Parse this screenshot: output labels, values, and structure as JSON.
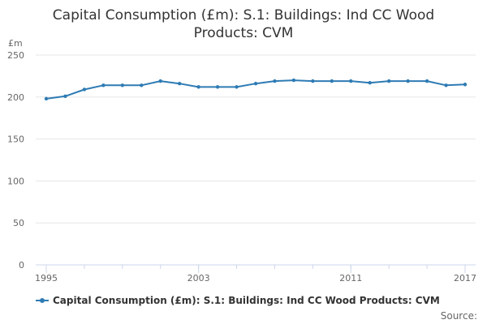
{
  "colors": {
    "series": "#2e7bb4",
    "grid": "#e6e6e6",
    "axis": "#ccd6eb",
    "text": "#666666"
  },
  "source_label": "Source:",
  "chart_data": {
    "type": "line",
    "title": "Capital Consumption (£m): S.1: Buildings: Ind CC Wood Products: CVM",
    "ylabel": "£m",
    "xlabel": "",
    "ylim": [
      0,
      250
    ],
    "yticks": [
      0,
      50,
      100,
      150,
      200,
      250
    ],
    "xticks": [
      1995,
      2003,
      2011,
      2017
    ],
    "grid": true,
    "legend": "bottom-left",
    "series": [
      {
        "name": "Capital Consumption (£m): S.1: Buildings: Ind CC Wood Products: CVM",
        "x": [
          1995,
          1996,
          1997,
          1998,
          1999,
          2000,
          2001,
          2002,
          2003,
          2004,
          2005,
          2006,
          2007,
          2008,
          2009,
          2010,
          2011,
          2012,
          2013,
          2014,
          2015,
          2016,
          2017
        ],
        "values": [
          198,
          201,
          209,
          214,
          214,
          214,
          219,
          216,
          212,
          212,
          212,
          216,
          219,
          220,
          219,
          219,
          219,
          217,
          219,
          219,
          219,
          214,
          215
        ]
      }
    ]
  }
}
